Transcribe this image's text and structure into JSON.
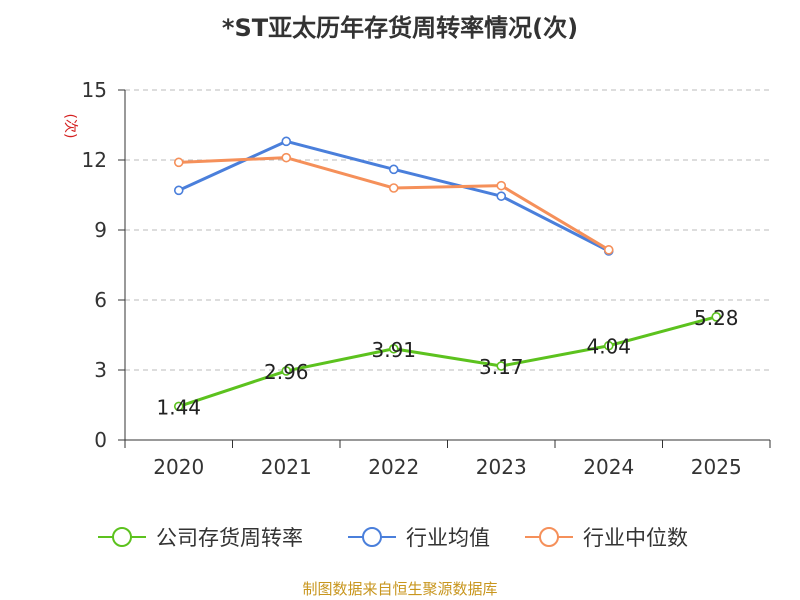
{
  "title": "*ST亚太历年存货周转率情况(次)",
  "source": "制图数据来自恒生聚源数据库",
  "chart_data": {
    "type": "line",
    "title": "*ST亚太历年存货周转率情况(次)",
    "ylabel": "(次)",
    "xlabel": "",
    "ylim": [
      0,
      15
    ],
    "yticks": [
      0,
      3,
      6,
      9,
      12,
      15
    ],
    "categories": [
      "2020",
      "2021",
      "2022",
      "2023",
      "2024",
      "2025"
    ],
    "grid": true,
    "legend_position": "bottom",
    "series": [
      {
        "name": "公司存货周转率",
        "color": "#5cc21e",
        "values": [
          1.44,
          2.96,
          3.91,
          3.17,
          4.04,
          5.28
        ],
        "labels": [
          "1.44",
          "2.96",
          "3.91",
          "3.17",
          "4.04",
          "5.28"
        ]
      },
      {
        "name": "行业均值",
        "color": "#4a7fdb",
        "values": [
          10.7,
          12.8,
          11.6,
          10.45,
          8.1,
          null
        ]
      },
      {
        "name": "行业中位数",
        "color": "#f5905a",
        "values": [
          11.9,
          12.1,
          10.8,
          10.9,
          8.15,
          null
        ]
      }
    ]
  }
}
